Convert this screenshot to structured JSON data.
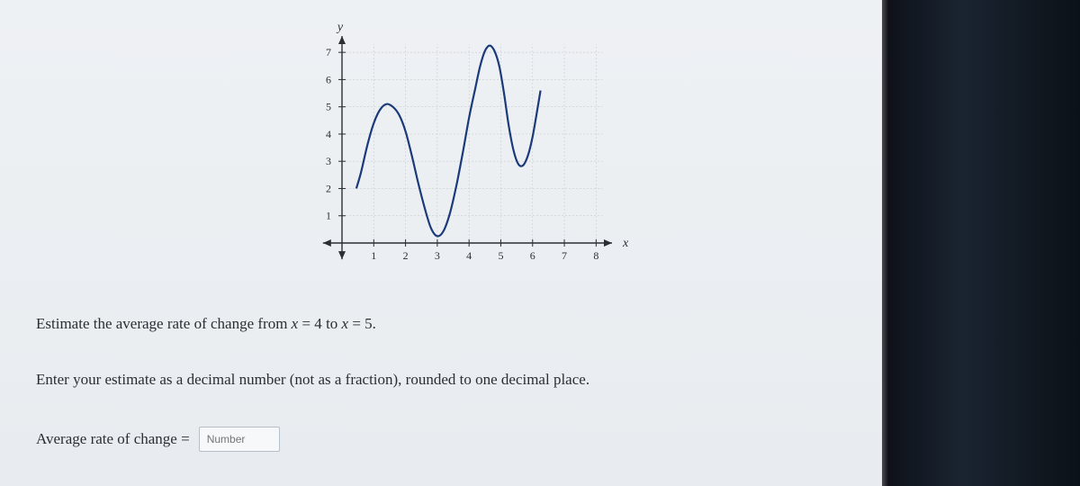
{
  "chart": {
    "type": "line",
    "x_axis_label": "x",
    "y_axis_label": "y",
    "xlim": [
      0,
      8.5
    ],
    "ylim": [
      0,
      7.6
    ],
    "xticks": [
      1,
      2,
      3,
      4,
      5,
      6,
      7,
      8
    ],
    "yticks": [
      1,
      2,
      3,
      4,
      5,
      6,
      7
    ],
    "xtick_labels": [
      "1",
      "2",
      "3",
      "4",
      "5",
      "6",
      "7",
      "8"
    ],
    "ytick_labels": [
      "1",
      "2",
      "3",
      "4",
      "5",
      "6",
      "7"
    ],
    "grid_on": true,
    "grid_color": "#c8ccd0",
    "axis_color": "#2b2f33",
    "curve_color": "#1b3a7a",
    "curve_width": 2.2,
    "background_color": "#eef1f4",
    "label_fontsize": 14,
    "tick_fontsize": 12,
    "points": [
      [
        0.45,
        2.0
      ],
      [
        0.6,
        2.6
      ],
      [
        0.8,
        3.6
      ],
      [
        1.0,
        4.4
      ],
      [
        1.2,
        4.9
      ],
      [
        1.4,
        5.1
      ],
      [
        1.6,
        5.0
      ],
      [
        1.8,
        4.7
      ],
      [
        2.0,
        4.1
      ],
      [
        2.2,
        3.2
      ],
      [
        2.4,
        2.2
      ],
      [
        2.6,
        1.3
      ],
      [
        2.8,
        0.55
      ],
      [
        3.0,
        0.25
      ],
      [
        3.2,
        0.45
      ],
      [
        3.4,
        1.1
      ],
      [
        3.6,
        2.1
      ],
      [
        3.8,
        3.3
      ],
      [
        4.0,
        4.6
      ],
      [
        4.2,
        5.7
      ],
      [
        4.35,
        6.5
      ],
      [
        4.5,
        7.05
      ],
      [
        4.65,
        7.25
      ],
      [
        4.8,
        7.05
      ],
      [
        4.95,
        6.5
      ],
      [
        5.1,
        5.5
      ],
      [
        5.25,
        4.3
      ],
      [
        5.4,
        3.4
      ],
      [
        5.55,
        2.9
      ],
      [
        5.7,
        2.85
      ],
      [
        5.85,
        3.2
      ],
      [
        6.0,
        3.9
      ],
      [
        6.15,
        4.9
      ],
      [
        6.25,
        5.6
      ]
    ]
  },
  "question": {
    "line1_pre": "Estimate the average rate of change from ",
    "line1_x1_var": "x",
    "line1_x1_eq": " = 4",
    "line1_mid": " to ",
    "line1_x2_var": "x",
    "line1_x2_eq": " = 5.",
    "line2": "Enter your estimate as a decimal number (not as a fraction), rounded to one decimal place.",
    "answer_label": "Average rate of change = ",
    "input_placeholder": "Number"
  }
}
